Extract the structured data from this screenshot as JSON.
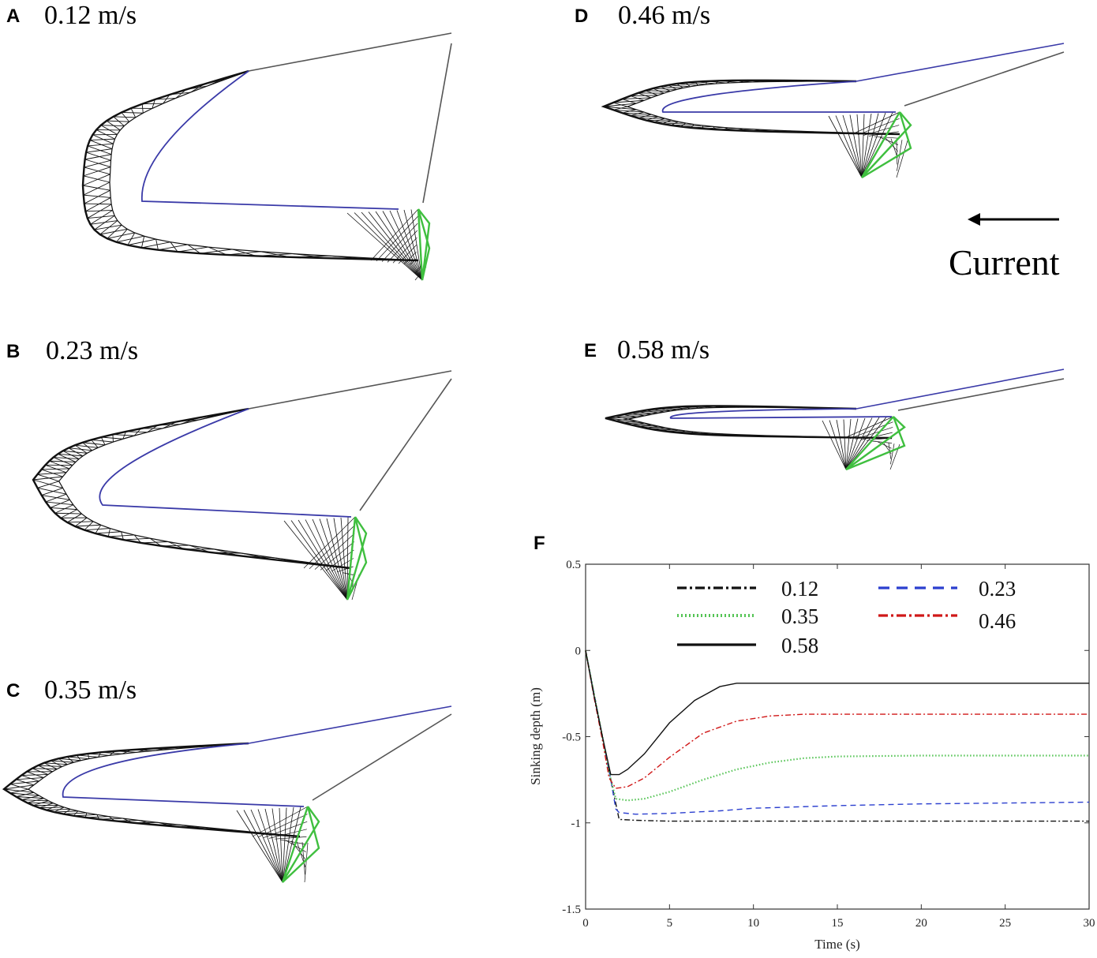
{
  "panels": [
    {
      "letter": "A",
      "speed": "0.12 m/s"
    },
    {
      "letter": "B",
      "speed": "0.23 m/s"
    },
    {
      "letter": "C",
      "speed": "0.35 m/s"
    },
    {
      "letter": "D",
      "speed": "0.46 m/s"
    },
    {
      "letter": "E",
      "speed": "0.58 m/s"
    }
  ],
  "current_label": "Current",
  "colors": {
    "net": "#111111",
    "headline": "#3a3aa8",
    "footrope": "#3fbf3f",
    "warp": "#555555"
  },
  "chart_data": {
    "panel_letter": "F",
    "type": "line",
    "title": "",
    "xlabel": "Time (s)",
    "ylabel": "Sinking depth (m)",
    "xlim": [
      0,
      30
    ],
    "ylim": [
      -1.5,
      0.5
    ],
    "xticks": [
      0,
      5,
      10,
      15,
      20,
      25,
      30
    ],
    "yticks": [
      0.5,
      0,
      -0.5,
      -1,
      -1.5
    ],
    "xtick_labels": [
      "0",
      "5",
      "10",
      "15",
      "20",
      "25",
      "30"
    ],
    "ytick_labels": [
      "0.5",
      "0",
      "-0.5",
      "-1",
      "-1.5"
    ],
    "legend_position": "top",
    "series": [
      {
        "name": "0.12",
        "color": "#111111",
        "dash": "dashdot",
        "x": [
          0,
          0.5,
          1,
          1.5,
          2,
          3,
          5,
          10,
          15,
          20,
          25,
          30
        ],
        "y": [
          0,
          -0.25,
          -0.5,
          -0.75,
          -0.98,
          -0.985,
          -0.99,
          -0.99,
          -0.99,
          -0.99,
          -0.99,
          -0.99
        ]
      },
      {
        "name": "0.23",
        "color": "#2b3fcf",
        "dash": "dashed",
        "x": [
          0,
          0.5,
          1,
          1.5,
          1.8,
          2,
          3,
          5,
          8,
          10,
          15,
          20,
          25,
          30
        ],
        "y": [
          0,
          -0.25,
          -0.5,
          -0.75,
          -0.92,
          -0.94,
          -0.95,
          -0.945,
          -0.93,
          -0.915,
          -0.9,
          -0.89,
          -0.885,
          -0.88
        ]
      },
      {
        "name": "0.35",
        "color": "#55c455",
        "dash": "dotted",
        "x": [
          0,
          0.5,
          1,
          1.5,
          1.8,
          2.5,
          3.5,
          5,
          7,
          9,
          11,
          13,
          15,
          20,
          25,
          30
        ],
        "y": [
          0,
          -0.25,
          -0.5,
          -0.75,
          -0.86,
          -0.87,
          -0.86,
          -0.82,
          -0.75,
          -0.69,
          -0.65,
          -0.625,
          -0.615,
          -0.61,
          -0.61,
          -0.61
        ]
      },
      {
        "name": "0.46",
        "color": "#d01818",
        "dash": "dashdot",
        "x": [
          0,
          0.5,
          1,
          1.4,
          1.8,
          2.5,
          3.5,
          5,
          7,
          9,
          11,
          13,
          15,
          20,
          25,
          30
        ],
        "y": [
          0,
          -0.27,
          -0.52,
          -0.74,
          -0.8,
          -0.79,
          -0.74,
          -0.62,
          -0.48,
          -0.41,
          -0.38,
          -0.37,
          -0.37,
          -0.37,
          -0.37,
          -0.37
        ]
      },
      {
        "name": "0.58",
        "color": "#111111",
        "dash": "solid",
        "x": [
          0,
          0.5,
          1,
          1.5,
          2,
          2.5,
          3.5,
          5,
          6.5,
          8,
          9,
          10,
          15,
          20,
          25,
          30
        ],
        "y": [
          0,
          -0.26,
          -0.5,
          -0.72,
          -0.72,
          -0.69,
          -0.6,
          -0.42,
          -0.29,
          -0.21,
          -0.19,
          -0.19,
          -0.19,
          -0.19,
          -0.19,
          -0.19
        ]
      }
    ]
  }
}
